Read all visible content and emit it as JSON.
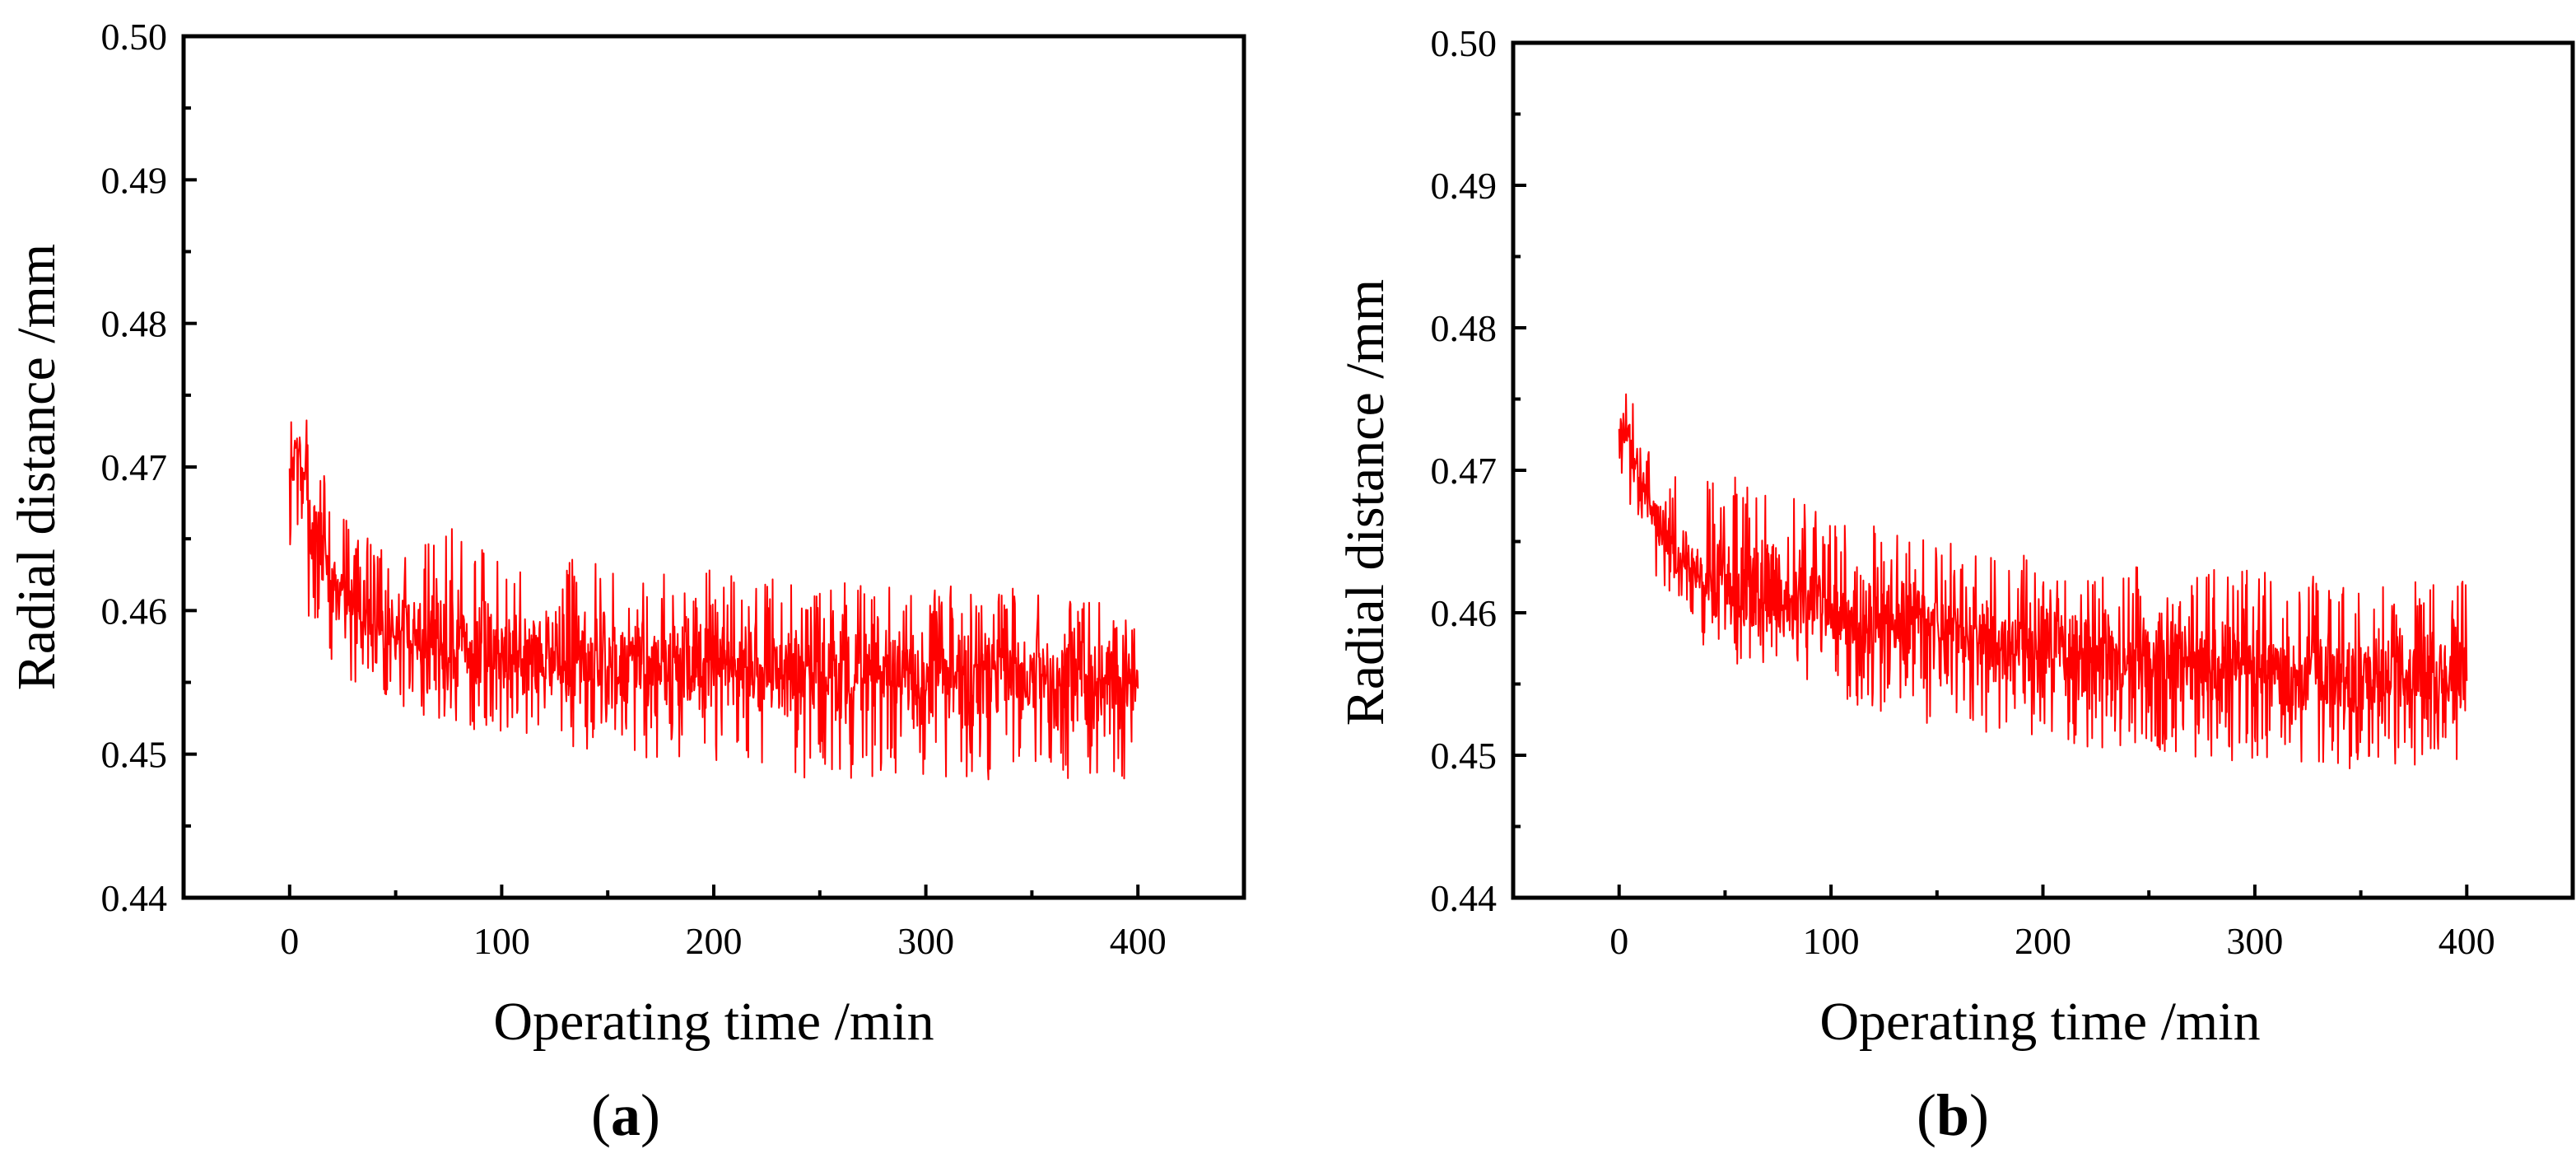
{
  "figure": {
    "panels": [
      {
        "label_open": "(",
        "label_letter": "a",
        "label_close": ")"
      },
      {
        "label_open": "(",
        "label_letter": "b",
        "label_close": ")"
      }
    ]
  },
  "chart_data": [
    {
      "type": "line",
      "title": "",
      "xlabel": "Operating time /min",
      "ylabel": "Radial distance /mm",
      "xlim": [
        -50,
        450
      ],
      "ylim": [
        0.44,
        0.5
      ],
      "xticks": [
        "0",
        "100",
        "200",
        "300",
        "400"
      ],
      "yticks": [
        "0.44",
        "0.45",
        "0.46",
        "0.47",
        "0.48",
        "0.49",
        "0.50"
      ],
      "grid": false,
      "series": [
        {
          "color": "#ff0000",
          "x_range": [
            0,
            400
          ],
          "trend": [
            [
              0,
              0.4645
            ],
            [
              2,
              0.4715
            ],
            [
              5,
              0.4705
            ],
            [
              10,
              0.4665
            ],
            [
              20,
              0.4625
            ],
            [
              35,
              0.46
            ],
            [
              50,
              0.4585
            ],
            [
              75,
              0.4575
            ],
            [
              100,
              0.457
            ],
            [
              150,
              0.4565
            ],
            [
              200,
              0.456
            ],
            [
              250,
              0.4555
            ],
            [
              300,
              0.4553
            ],
            [
              350,
              0.4552
            ],
            [
              400,
              0.455
            ]
          ],
          "envelope": [
            [
              0,
              0.4645,
              0.4745
            ],
            [
              5,
              0.46,
              0.4745
            ],
            [
              10,
              0.4595,
              0.4725
            ],
            [
              20,
              0.4555,
              0.4675
            ],
            [
              50,
              0.4535,
              0.4635
            ],
            [
              75,
              0.452,
              0.466
            ],
            [
              100,
              0.4512,
              0.464
            ],
            [
              150,
              0.45,
              0.4635
            ],
            [
              200,
              0.449,
              0.4628
            ],
            [
              250,
              0.4482,
              0.462
            ],
            [
              300,
              0.4482,
              0.462
            ],
            [
              350,
              0.4482,
              0.4615
            ],
            [
              400,
              0.4482,
              0.4605
            ]
          ]
        }
      ]
    },
    {
      "type": "line",
      "title": "",
      "xlabel": "Operating time /min",
      "ylabel": "Radial distance /mm",
      "xlim": [
        -50,
        450
      ],
      "ylim": [
        0.44,
        0.5
      ],
      "xticks": [
        "0",
        "100",
        "200",
        "300",
        "400"
      ],
      "yticks": [
        "0.44",
        "0.45",
        "0.46",
        "0.47",
        "0.48",
        "0.49",
        "0.50"
      ],
      "grid": false,
      "series": [
        {
          "color": "#ff0000",
          "x_range": [
            0,
            400
          ],
          "trend": [
            [
              0,
              0.4735
            ],
            [
              5,
              0.472
            ],
            [
              10,
              0.469
            ],
            [
              20,
              0.466
            ],
            [
              35,
              0.463
            ],
            [
              50,
              0.4615
            ],
            [
              75,
              0.4605
            ],
            [
              100,
              0.46
            ],
            [
              150,
              0.4585
            ],
            [
              200,
              0.4575
            ],
            [
              250,
              0.457
            ],
            [
              300,
              0.4562
            ],
            [
              350,
              0.4558
            ],
            [
              400,
              0.4555
            ]
          ],
          "envelope": [
            [
              0,
              0.47,
              0.4745
            ],
            [
              5,
              0.4665,
              0.4762
            ],
            [
              10,
              0.464,
              0.4725
            ],
            [
              20,
              0.462,
              0.4695
            ],
            [
              50,
              0.4555,
              0.47
            ],
            [
              75,
              0.4555,
              0.469
            ],
            [
              100,
              0.454,
              0.4672
            ],
            [
              150,
              0.452,
              0.465
            ],
            [
              200,
              0.451,
              0.464
            ],
            [
              250,
              0.45,
              0.4635
            ],
            [
              300,
              0.4495,
              0.463
            ],
            [
              350,
              0.449,
              0.4625
            ],
            [
              400,
              0.4495,
              0.4622
            ]
          ]
        }
      ]
    }
  ]
}
